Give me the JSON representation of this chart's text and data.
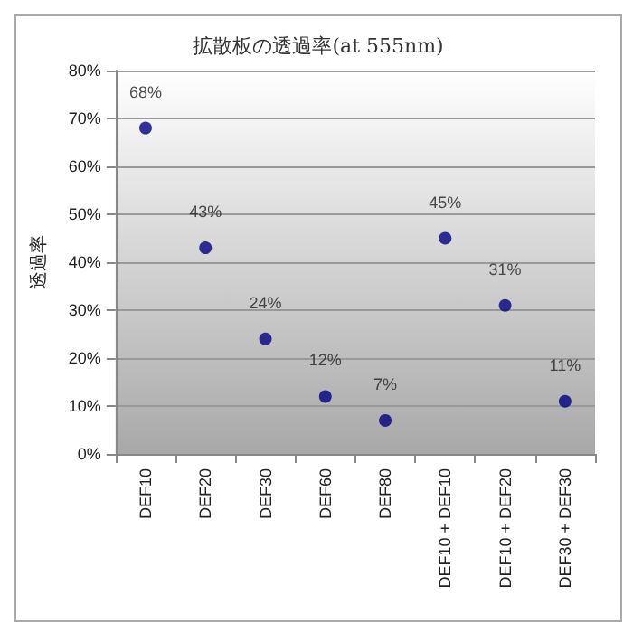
{
  "chart_data": {
    "type": "scatter",
    "title": "拡散板の透過率(at 555nm)",
    "ylabel": "透過率",
    "categories": [
      "DEF10",
      "DEF20",
      "DEF30",
      "DEF60",
      "DEF80",
      "DEF10 + DEF10",
      "DEF10 + DEF20",
      "DEF30 + DEF30"
    ],
    "series": [
      {
        "color": "#000080",
        "values": [
          68,
          43,
          24,
          12,
          7,
          45,
          31,
          11
        ],
        "value_labels": [
          "68%",
          "43%",
          "24%",
          "12%",
          "7%",
          "45%",
          "31%",
          "11%"
        ]
      }
    ],
    "ylim": [
      0,
      80
    ],
    "yticks": [
      {
        "value": 0,
        "label": "0%"
      },
      {
        "value": 10,
        "label": "10%"
      },
      {
        "value": 20,
        "label": "20%"
      },
      {
        "value": 30,
        "label": "30%"
      },
      {
        "value": 40,
        "label": "40%"
      },
      {
        "value": 50,
        "label": "50%"
      },
      {
        "value": 60,
        "label": "60%"
      },
      {
        "value": 70,
        "label": "70%"
      },
      {
        "value": 80,
        "label": "80%"
      }
    ],
    "grid": "y",
    "marker": "circle"
  }
}
